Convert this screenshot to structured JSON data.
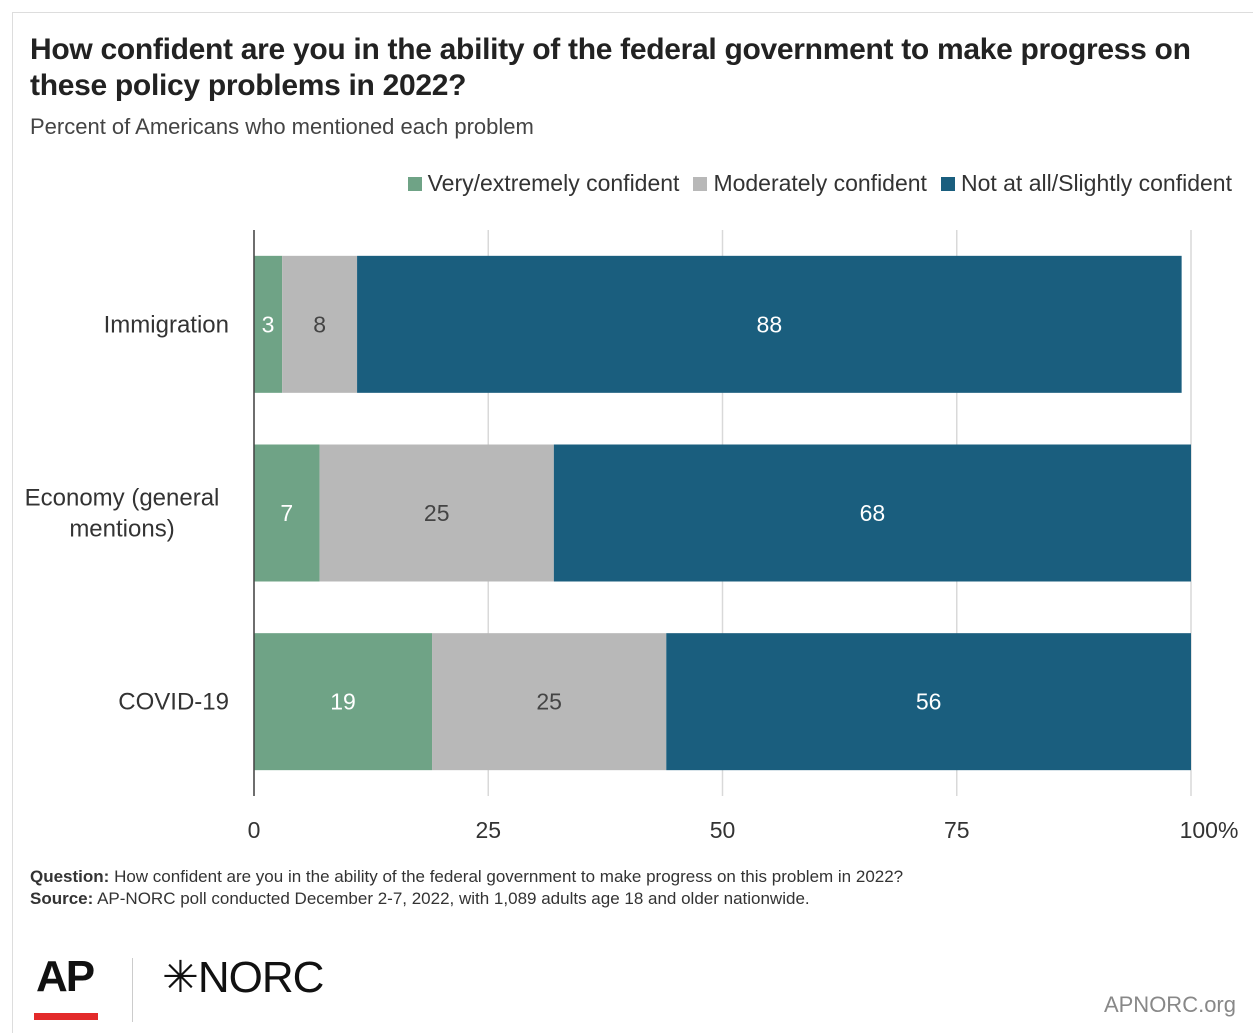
{
  "title": "How confident are you in the ability of the federal government to make progress on these policy problems in 2022?",
  "subtitle": "Percent of Americans who mentioned each problem",
  "colors": {
    "very": "#6fa386",
    "moderate": "#b8b8b8",
    "not": "#1a5e7e",
    "grid": "#d9d9d9",
    "axis": "#444444"
  },
  "chart_data": {
    "type": "bar",
    "orientation": "horizontal",
    "stacked": true,
    "categories": [
      "Immigration",
      "Economy (general mentions)",
      "COVID-19"
    ],
    "category_label_lines": [
      [
        "Immigration"
      ],
      [
        "Economy (general",
        "mentions)"
      ],
      [
        "COVID-19"
      ]
    ],
    "series": [
      {
        "name": "Very/extremely confident",
        "values": [
          3,
          7,
          19
        ],
        "label_color": "#ffffff",
        "color_key": "very"
      },
      {
        "name": "Moderately confident",
        "values": [
          8,
          25,
          25
        ],
        "label_color": "#444444",
        "color_key": "moderate"
      },
      {
        "name": "Not at all/Slightly confident",
        "values": [
          88,
          68,
          56
        ],
        "label_color": "#ffffff",
        "color_key": "not"
      }
    ],
    "xlim": [
      0,
      100
    ],
    "xticks": [
      0,
      25,
      50,
      75,
      100
    ],
    "xtick_labels": [
      "0",
      "25",
      "50",
      "75",
      "100%"
    ],
    "grid": true,
    "legend_position": "top-right"
  },
  "notes": {
    "question_label": "Question:",
    "question_text": " How confident are you in the ability of the federal government to make progress on this problem in 2022?",
    "source_label": "Source:",
    "source_text": " AP-NORC poll conducted December 2-7, 2022, with 1,089 adults age 18 and older nationwide."
  },
  "logos": {
    "ap": "AP",
    "norc": "✳NORC",
    "site": "APNORC.org"
  }
}
